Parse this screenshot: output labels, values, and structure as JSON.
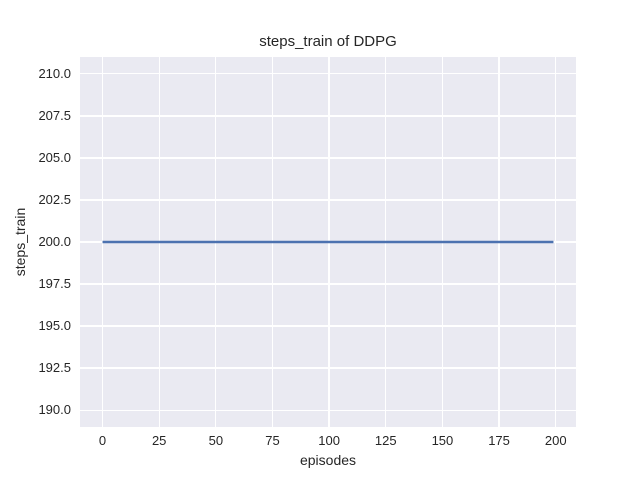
{
  "chart_data": {
    "type": "line",
    "title": "steps_train of DDPG",
    "xlabel": "episodes",
    "ylabel": "steps_train",
    "xlim": [
      -9.95,
      208.95
    ],
    "ylim": [
      189,
      211
    ],
    "xtick_values": [
      0,
      25,
      50,
      75,
      100,
      125,
      150,
      175,
      200
    ],
    "xtick_labels": [
      "0",
      "25",
      "50",
      "75",
      "100",
      "125",
      "150",
      "175",
      "200"
    ],
    "ytick_values": [
      190.0,
      192.5,
      195.0,
      197.5,
      200.0,
      202.5,
      205.0,
      207.5,
      210.0
    ],
    "ytick_labels": [
      "190.0",
      "192.5",
      "195.0",
      "197.5",
      "200.0",
      "202.5",
      "205.0",
      "207.5",
      "210.0"
    ],
    "grid": true,
    "legend": null,
    "series": [
      {
        "name": "steps_train",
        "x": [
          0,
          199
        ],
        "y": [
          200,
          200
        ],
        "constant_value": 200,
        "color": "#4c72b0"
      }
    ],
    "colors": {
      "plot_background": "#eaeaf2",
      "figure_background": "#ffffff",
      "gridline": "#ffffff",
      "text": "#262626",
      "line": "#4c72b0"
    }
  }
}
